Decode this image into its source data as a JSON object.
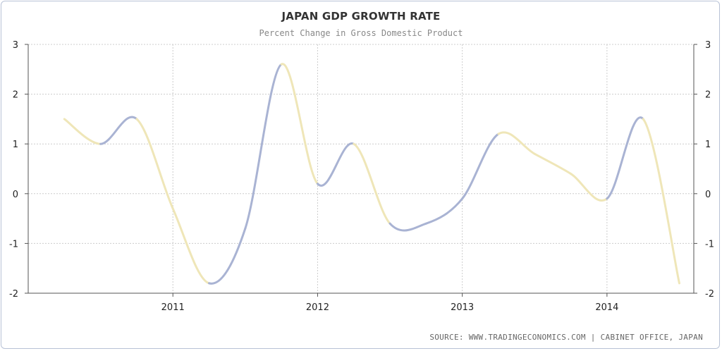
{
  "title": "JAPAN GDP GROWTH RATE",
  "subtitle": "Percent Change in Gross Domestic Product",
  "source": "SOURCE: WWW.TRADINGECONOMICS.COM | CABINET OFFICE, JAPAN",
  "colors": {
    "positive_line": "#a9b3d3",
    "negative_line": "#efe6b8",
    "grid": "#cccccc",
    "axis": "#555555"
  },
  "chart_data": {
    "type": "line",
    "title": "JAPAN GDP GROWTH RATE",
    "subtitle": "Percent Change in Gross Domestic Product",
    "xlabel": "",
    "ylabel": "",
    "ylim": [
      -2,
      3
    ],
    "y_ticks": [
      "3",
      "2",
      "1",
      "0",
      "-1",
      "-2"
    ],
    "y_tick_values": [
      3,
      2,
      1,
      0,
      -1,
      -2
    ],
    "x_ticks": [
      "2011",
      "2012",
      "2013",
      "2014"
    ],
    "x_tick_values": [
      2011,
      2012,
      2013,
      2014
    ],
    "xlim": [
      2010.0,
      2014.6
    ],
    "grid": true,
    "legend": "none",
    "axes": "y axis on both left and right",
    "color_rule": "line segments colored blue while rising and yellow while falling",
    "series": [
      {
        "x": [
          2010.25,
          2010.5,
          2010.75,
          2011.0,
          2011.25,
          2011.5,
          2011.75,
          2012.0,
          2012.25,
          2012.5,
          2012.75,
          2013.0,
          2013.25,
          2013.5,
          2013.75,
          2014.0,
          2014.25,
          2014.5
        ],
        "y": [
          1.5,
          1.0,
          1.5,
          -0.3,
          -1.8,
          -0.7,
          2.6,
          0.2,
          1.0,
          -0.6,
          -0.6,
          -0.1,
          1.2,
          0.8,
          0.4,
          -0.1,
          1.5,
          -1.8
        ]
      }
    ]
  }
}
